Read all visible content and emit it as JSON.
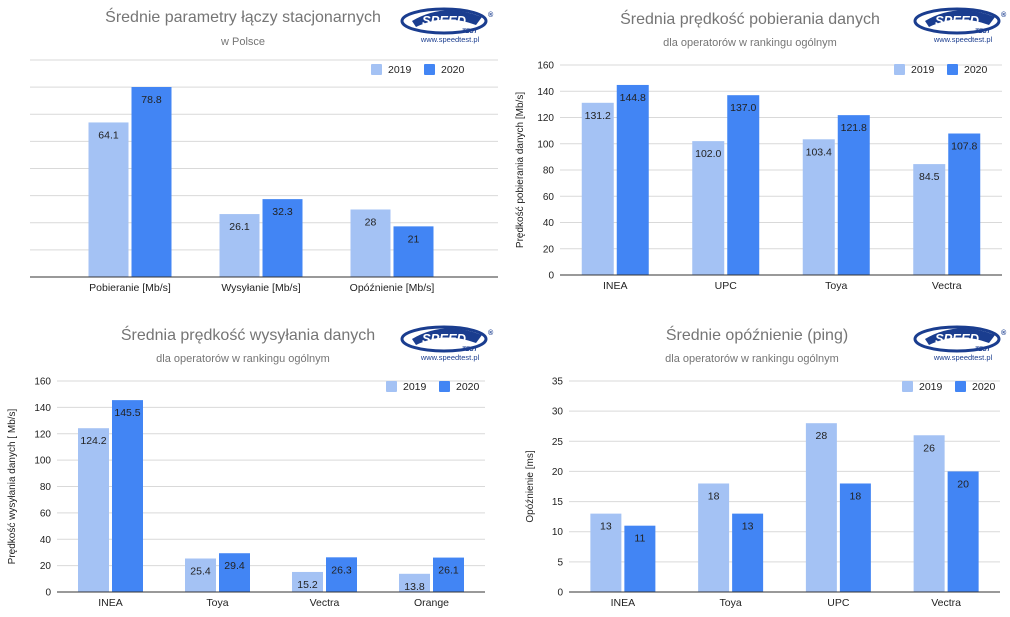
{
  "brand": {
    "logo_word": "SPEED",
    "logo_sub": "TEST",
    "reg_mark": "®",
    "url": "www.speedtest.pl"
  },
  "colors": {
    "series_2019": "#a4c2f4",
    "series_2020": "#4285f4",
    "grid": "#d9d9d9",
    "axis": "#333333",
    "logo": "#1a3d8f"
  },
  "chart_data": [
    {
      "type": "bar",
      "title": "Średnie parametry łączy stacjonarnych",
      "subtitle": "w Polsce",
      "xlabel": "",
      "ylabel": "",
      "ylim": [
        0,
        90
      ],
      "yticks": [],
      "grid": true,
      "legend": "top-right",
      "categories": [
        "Pobieranie [Mb/s]",
        "Wysyłanie [Mb/s]",
        "Opóźnienie [Mb/s]"
      ],
      "series": [
        {
          "name": "2019",
          "values": [
            64.1,
            26.1,
            28
          ],
          "labels": [
            "64.1",
            "26.1",
            "28"
          ]
        },
        {
          "name": "2020",
          "values": [
            78.8,
            32.3,
            21
          ],
          "labels": [
            "78.8",
            "32.3",
            "21"
          ]
        }
      ]
    },
    {
      "type": "bar",
      "title": "Średnia prędkość pobierania danych",
      "subtitle": "dla operatorów w rankingu ogólnym",
      "xlabel": "",
      "ylabel": "Prędkość pobierania danych [Mb/s]",
      "ylim": [
        0,
        160
      ],
      "yticks": [
        0,
        20,
        40,
        60,
        80,
        100,
        120,
        140,
        160
      ],
      "grid": true,
      "legend": "top-right",
      "categories": [
        "INEA",
        "UPC",
        "Toya",
        "Vectra"
      ],
      "series": [
        {
          "name": "2019",
          "values": [
            131.2,
            102.0,
            103.4,
            84.5
          ],
          "labels": [
            "131.2",
            "102.0",
            "103.4",
            "84.5"
          ]
        },
        {
          "name": "2020",
          "values": [
            144.8,
            137.0,
            121.8,
            107.8
          ],
          "labels": [
            "144.8",
            "137.0",
            "121.8",
            "107.8"
          ]
        }
      ]
    },
    {
      "type": "bar",
      "title": "Średnia prędkość wysyłania danych",
      "subtitle": "dla operatorów w rankingu ogólnym",
      "xlabel": "",
      "ylabel": "Prędkość wysyłania danych [ Mb/s]",
      "ylim": [
        0,
        160
      ],
      "yticks": [
        0,
        20,
        40,
        60,
        80,
        100,
        120,
        140,
        160
      ],
      "grid": true,
      "legend": "top-right",
      "categories": [
        "INEA",
        "Toya",
        "Vectra",
        "Orange"
      ],
      "series": [
        {
          "name": "2019",
          "values": [
            124.2,
            25.4,
            15.2,
            13.8
          ],
          "labels": [
            "124.2",
            "25.4",
            "15.2",
            "13.8"
          ]
        },
        {
          "name": "2020",
          "values": [
            145.5,
            29.4,
            26.3,
            26.1
          ],
          "labels": [
            "145.5",
            "29.4",
            "26.3",
            "26.1"
          ]
        }
      ]
    },
    {
      "type": "bar",
      "title": "Średnie opóźnienie (ping)",
      "subtitle": "dla operatorów w rankingu ogólnym",
      "xlabel": "",
      "ylabel": "Opóźnienie [ms]",
      "ylim": [
        0,
        35
      ],
      "yticks": [
        0,
        5,
        10,
        15,
        20,
        25,
        30,
        35
      ],
      "grid": true,
      "legend": "top-right",
      "categories": [
        "INEA",
        "Toya",
        "UPC",
        "Vectra"
      ],
      "series": [
        {
          "name": "2019",
          "values": [
            13,
            18,
            28,
            26
          ],
          "labels": [
            "13",
            "18",
            "28",
            "26"
          ]
        },
        {
          "name": "2020",
          "values": [
            11,
            13,
            18,
            20
          ],
          "labels": [
            "11",
            "13",
            "18",
            "20"
          ]
        }
      ]
    }
  ]
}
